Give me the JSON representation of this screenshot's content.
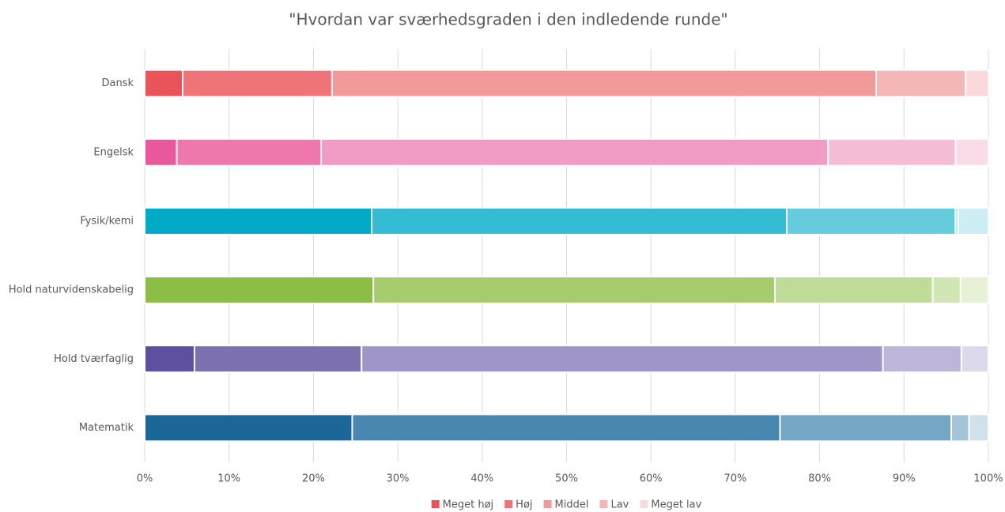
{
  "chart_data": {
    "type": "stacked_bar_horizontal",
    "title": "\"Hvordan var sværhedsgraden i den indledende runde\"",
    "categories": [
      "Dansk",
      "Engelsk",
      "Fysik/kemi",
      "Hold naturvidenskabelig",
      "Hold tværfaglig",
      "Matematik"
    ],
    "series": [
      {
        "name": "Meget høj",
        "color": "#e9545a",
        "values": [
          4.5,
          3.8,
          26.9,
          27.1,
          5.9,
          24.6
        ],
        "colors": [
          "#e9545a",
          "#e8589a",
          "#02aac8",
          "#8cbd45",
          "#5e4f9f",
          "#1d6698"
        ]
      },
      {
        "name": "Høj",
        "color": "#ef7478",
        "values": [
          17.7,
          17.1,
          49.2,
          47.6,
          19.8,
          50.7
        ],
        "colors": [
          "#ef7478",
          "#ee77ac",
          "#33bcd4",
          "#a6cc6e",
          "#7d70b0",
          "#4787b0"
        ]
      },
      {
        "name": "Middel",
        "color": "#f29a9a",
        "values": [
          64.5,
          60.1,
          20.0,
          18.7,
          61.8,
          20.3
        ],
        "colors": [
          "#f29a9a",
          "#f19cc4",
          "#66cbdc",
          "#bedb98",
          "#9f95c6",
          "#74a6c6"
        ]
      },
      {
        "name": "Lav",
        "color": "#f5b6b6",
        "values": [
          10.6,
          15.1,
          0.3,
          3.3,
          9.3,
          2.1
        ],
        "colors": [
          "#f5b6b6",
          "#f5bcd6",
          "#99dce8",
          "#d1e6b5",
          "#bdb6d8",
          "#a2c3d8"
        ]
      },
      {
        "name": "Meget lav",
        "color": "#fad9da",
        "values": [
          2.7,
          3.9,
          3.6,
          3.3,
          3.2,
          2.3
        ],
        "colors": [
          "#fad9da",
          "#fadbe8",
          "#cceef4",
          "#e6f1d6",
          "#ddd9ec",
          "#d0e1ec"
        ]
      }
    ],
    "xlim": [
      0,
      100
    ],
    "xticks": [
      {
        "value": 0,
        "label": "0%"
      },
      {
        "value": 10,
        "label": "10%"
      },
      {
        "value": 20,
        "label": "20%"
      },
      {
        "value": 30,
        "label": "30%"
      },
      {
        "value": 40,
        "label": "40%"
      },
      {
        "value": 50,
        "label": "50%"
      },
      {
        "value": 60,
        "label": "60%"
      },
      {
        "value": 70,
        "label": "70%"
      },
      {
        "value": 80,
        "label": "80%"
      },
      {
        "value": 90,
        "label": "90%"
      },
      {
        "value": 100,
        "label": "100%"
      }
    ],
    "grid": true,
    "legend": "bottom"
  }
}
